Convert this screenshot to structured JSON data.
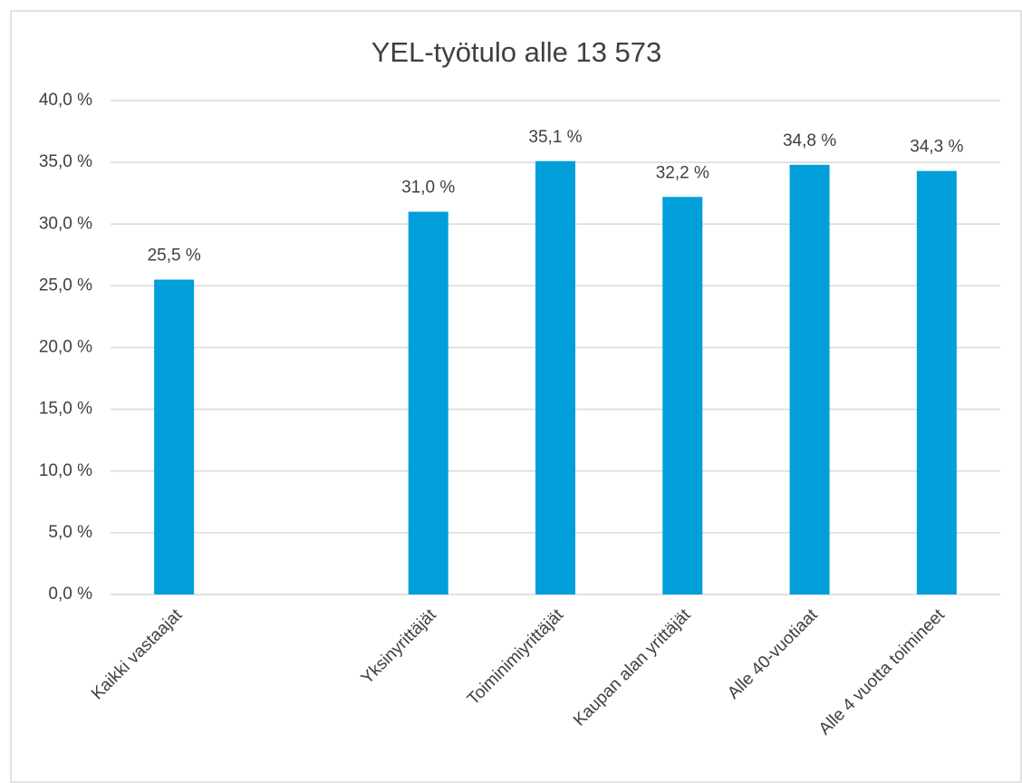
{
  "chart_data": {
    "type": "bar",
    "title": "YEL-työtulo alle 13 573",
    "categories": [
      "Kaikki vastaajat",
      null,
      "Yksinyrittäjät",
      "Toiminimiyrittäjät",
      "Kaupan alan yrittäjät",
      "Alle 40-vuotiaat",
      "Alle 4 vuotta toimineet"
    ],
    "values": [
      25.5,
      null,
      31.0,
      35.1,
      32.2,
      34.8,
      34.3
    ],
    "value_labels": [
      "25,5 %",
      null,
      "31,0 %",
      "35,1 %",
      "32,2 %",
      "34,8 %",
      "34,3 %"
    ],
    "color": "#009fda",
    "ylim": [
      0,
      40
    ],
    "yticks": [
      {
        "value": 0,
        "label": "0,0 %"
      },
      {
        "value": 5,
        "label": "5,0 %"
      },
      {
        "value": 10,
        "label": "10,0 %"
      },
      {
        "value": 15,
        "label": "15,0 %"
      },
      {
        "value": 20,
        "label": "20,0 %"
      },
      {
        "value": 25,
        "label": "25,0 %"
      },
      {
        "value": 30,
        "label": "30,0 %"
      },
      {
        "value": 35,
        "label": "35,0 %"
      },
      {
        "value": 40,
        "label": "40,0 %"
      }
    ],
    "grid": true
  }
}
